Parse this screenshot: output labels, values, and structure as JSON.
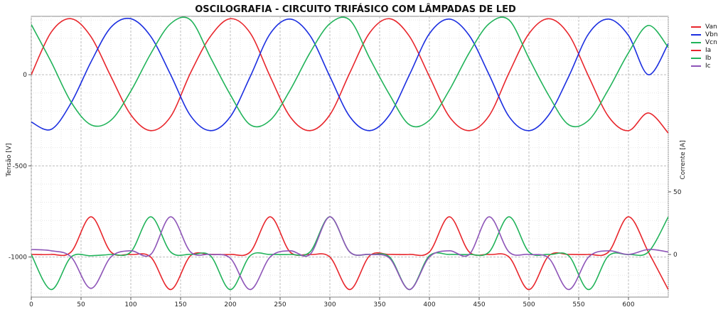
{
  "chart_data": {
    "type": "line",
    "title": "OSCILOGRAFIA - CIRCUITO TRIFÁSICO COM LÂMPADAS DE LED",
    "xlabel": "",
    "ylabel": "Tensão [V]",
    "y2label": "Corrente [A]",
    "xlim": [
      0,
      640
    ],
    "ylim": [
      -1220,
      320
    ],
    "y2lim": [
      -34,
      190
    ],
    "x_ticks": [
      0,
      50,
      100,
      150,
      200,
      250,
      300,
      350,
      400,
      450,
      500,
      550,
      600
    ],
    "y_ticks": [
      0,
      -500,
      -1000
    ],
    "y2_ticks": [
      0,
      50
    ],
    "grid": true,
    "legend_position": "right",
    "x": [
      0,
      20,
      40,
      60,
      80,
      100,
      120,
      140,
      160,
      180,
      200,
      220,
      240,
      260,
      280,
      300,
      320,
      340,
      360,
      380,
      400,
      420,
      440,
      460,
      480,
      500,
      520,
      540,
      560,
      580,
      600,
      620,
      640
    ],
    "series": [
      {
        "name": "Van",
        "axis": "left",
        "color": "#e8262c",
        "values": [
          0,
          233,
          307,
          208,
          -10,
          -220,
          -307,
          -230,
          10,
          210,
          307,
          228,
          -10,
          -230,
          -307,
          -220,
          10,
          230,
          307,
          210,
          -10,
          -230,
          -307,
          -225,
          10,
          225,
          307,
          220,
          -10,
          -230,
          -307,
          -210,
          -320
        ]
      },
      {
        "name": "Vbn",
        "axis": "left",
        "color": "#1c2fe0",
        "values": [
          -260,
          -300,
          -155,
          70,
          260,
          307,
          210,
          0,
          -225,
          -307,
          -230,
          -10,
          225,
          305,
          215,
          -10,
          -230,
          -307,
          -220,
          0,
          225,
          305,
          215,
          0,
          -230,
          -307,
          -220,
          -10,
          225,
          305,
          215,
          0,
          170
        ]
      },
      {
        "name": "Vcn",
        "axis": "left",
        "color": "#21b35a",
        "values": [
          275,
          70,
          -150,
          -275,
          -250,
          -90,
          115,
          280,
          300,
          95,
          -110,
          -275,
          -250,
          -85,
          120,
          280,
          300,
          90,
          -110,
          -275,
          -250,
          -85,
          120,
          280,
          300,
          90,
          -115,
          -275,
          -250,
          -80,
          120,
          270,
          150
        ]
      },
      {
        "name": "Ia",
        "axis": "right",
        "color": "#e8262c",
        "values": [
          0,
          0,
          2,
          30,
          2,
          0,
          -2,
          -28,
          -1,
          0,
          0,
          2,
          30,
          2,
          0,
          -2,
          -28,
          -1,
          0,
          0,
          2,
          30,
          2,
          0,
          -2,
          -28,
          -1,
          0,
          0,
          2,
          30,
          2,
          -28
        ]
      },
      {
        "name": "Ib",
        "axis": "right",
        "color": "#21b35a",
        "values": [
          0,
          -28,
          -2,
          -1,
          0,
          2,
          30,
          2,
          0,
          -1,
          -28,
          -1,
          0,
          0,
          2,
          30,
          2,
          0,
          -2,
          -28,
          -1,
          0,
          0,
          2,
          30,
          2,
          0,
          -1,
          -28,
          -1,
          0,
          2,
          30
        ]
      },
      {
        "name": "Ic",
        "axis": "right",
        "color": "#8e55b8",
        "values": [
          4,
          3,
          -2,
          -27,
          -2,
          3,
          0,
          30,
          2,
          0,
          -3,
          -28,
          -2,
          3,
          0,
          30,
          2,
          0,
          -3,
          -28,
          -2,
          3,
          0,
          30,
          2,
          0,
          -3,
          -28,
          -2,
          3,
          0,
          4,
          2
        ]
      }
    ]
  }
}
